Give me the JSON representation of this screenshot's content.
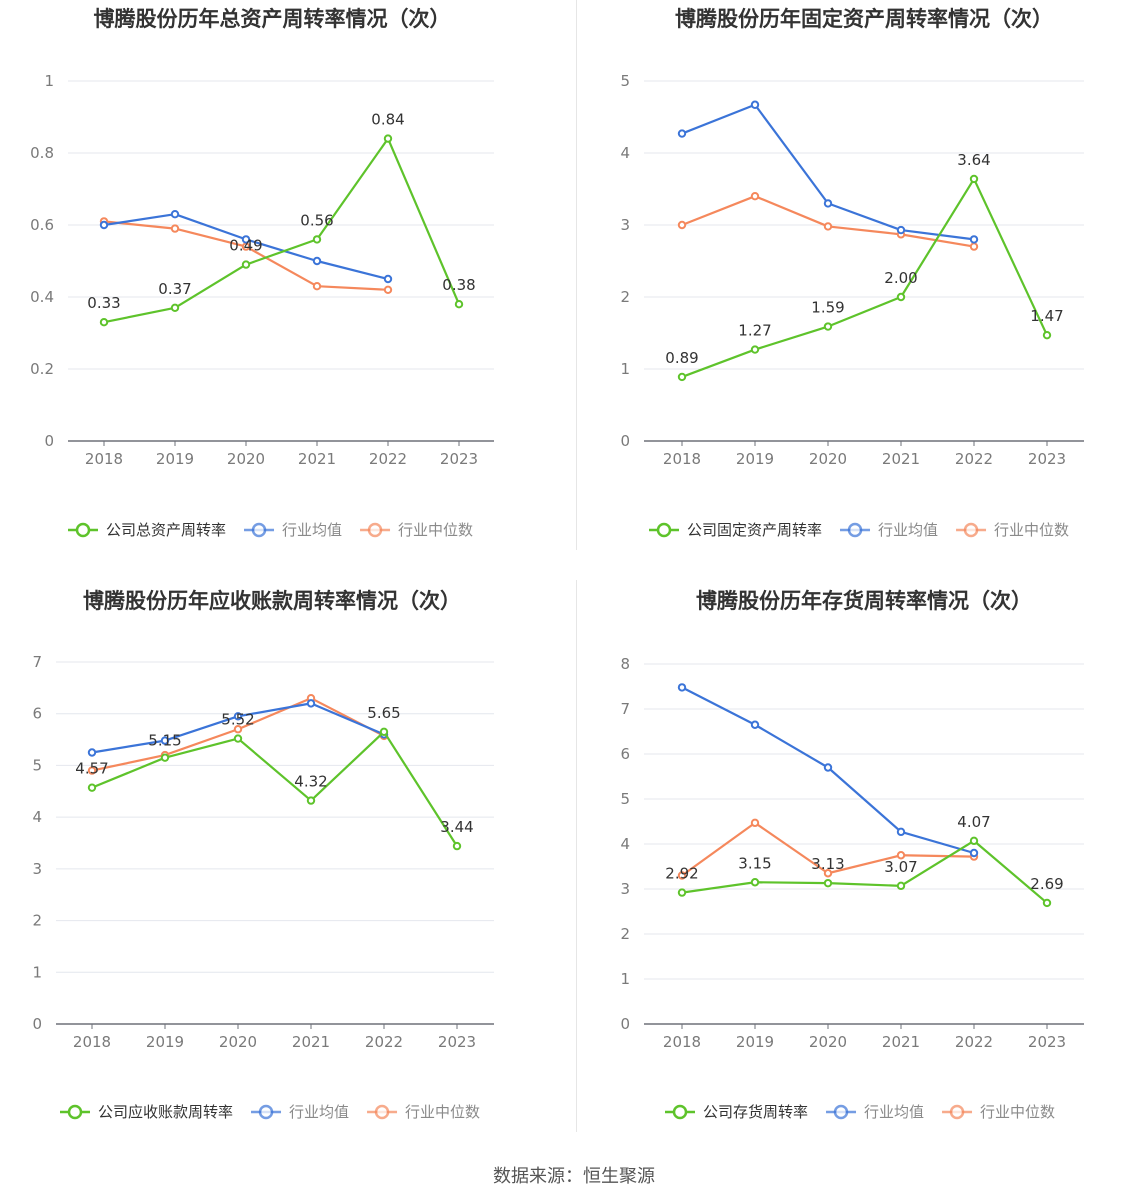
{
  "source_text": "数据来源：恒生聚源",
  "legend_common": {
    "avg_label": "行业均值",
    "median_label": "行业中位数"
  },
  "colors": {
    "company": "#5ec32b",
    "avg": "#3b74d8",
    "median": "#f5885c",
    "axis_text": "#7a7a7a",
    "grid": "#e4e7ee"
  },
  "chart_data": [
    {
      "type": "line",
      "title": "博腾股份历年总资产周转率情况（次）",
      "categories": [
        "2018",
        "2019",
        "2020",
        "2021",
        "2022",
        "2023"
      ],
      "ylim": [
        0,
        1
      ],
      "yticks": [
        "0",
        "0.2",
        "0.4",
        "0.6",
        "0.8",
        "1"
      ],
      "series": [
        {
          "name": "公司总资产周转率",
          "role": "company",
          "values": [
            0.33,
            0.37,
            0.49,
            0.56,
            0.84,
            0.38
          ],
          "labels": [
            "0.33",
            "0.37",
            "0.49",
            "0.56",
            "0.84",
            "0.38"
          ]
        },
        {
          "name": "行业均值",
          "role": "avg",
          "values": [
            0.6,
            0.63,
            0.56,
            0.5,
            0.45,
            null
          ]
        },
        {
          "name": "行业中位数",
          "role": "median",
          "values": [
            0.61,
            0.59,
            0.54,
            0.43,
            0.42,
            null
          ]
        }
      ]
    },
    {
      "type": "line",
      "title": "博腾股份历年固定资产周转率情况（次）",
      "categories": [
        "2018",
        "2019",
        "2020",
        "2021",
        "2022",
        "2023"
      ],
      "ylim": [
        0,
        5
      ],
      "yticks": [
        "0",
        "1",
        "2",
        "3",
        "4",
        "5"
      ],
      "series": [
        {
          "name": "公司固定资产周转率",
          "role": "company",
          "values": [
            0.89,
            1.27,
            1.59,
            2.0,
            3.64,
            1.47
          ],
          "labels": [
            "0.89",
            "1.27",
            "1.59",
            "2.00",
            "3.64",
            "1.47"
          ]
        },
        {
          "name": "行业均值",
          "role": "avg",
          "values": [
            4.27,
            4.67,
            3.3,
            2.93,
            2.8,
            null
          ]
        },
        {
          "name": "行业中位数",
          "role": "median",
          "values": [
            3.0,
            3.4,
            2.98,
            2.87,
            2.7,
            null
          ]
        }
      ]
    },
    {
      "type": "line",
      "title": "博腾股份历年应收账款周转率情况（次）",
      "categories": [
        "2018",
        "2019",
        "2020",
        "2021",
        "2022",
        "2023"
      ],
      "ylim": [
        0,
        7
      ],
      "yticks": [
        "0",
        "1",
        "2",
        "3",
        "4",
        "5",
        "6",
        "7"
      ],
      "series": [
        {
          "name": "公司应收账款周转率",
          "role": "company",
          "values": [
            4.57,
            5.15,
            5.52,
            4.32,
            5.65,
            3.44
          ],
          "labels": [
            "4.57",
            "5.15",
            "5.52",
            "4.32",
            "5.65",
            "3.44"
          ]
        },
        {
          "name": "行业均值",
          "role": "avg",
          "values": [
            5.25,
            5.48,
            5.95,
            6.2,
            5.6,
            null
          ]
        },
        {
          "name": "行业中位数",
          "role": "median",
          "values": [
            4.9,
            5.2,
            5.7,
            6.3,
            5.57,
            null
          ]
        }
      ]
    },
    {
      "type": "line",
      "title": "博腾股份历年存货周转率情况（次）",
      "categories": [
        "2018",
        "2019",
        "2020",
        "2021",
        "2022",
        "2023"
      ],
      "ylim": [
        0,
        8
      ],
      "yticks": [
        "0",
        "1",
        "2",
        "3",
        "4",
        "5",
        "6",
        "7",
        "8"
      ],
      "series": [
        {
          "name": "公司存货周转率",
          "role": "company",
          "values": [
            2.92,
            3.15,
            3.13,
            3.07,
            4.07,
            2.69
          ],
          "labels": [
            "2.92",
            "3.15",
            "3.13",
            "3.07",
            "4.07",
            "2.69"
          ]
        },
        {
          "name": "行业均值",
          "role": "avg",
          "values": [
            7.48,
            6.65,
            5.7,
            4.27,
            3.8,
            null
          ]
        },
        {
          "name": "行业中位数",
          "role": "median",
          "values": [
            3.3,
            4.47,
            3.35,
            3.75,
            3.72,
            null
          ]
        }
      ]
    }
  ]
}
